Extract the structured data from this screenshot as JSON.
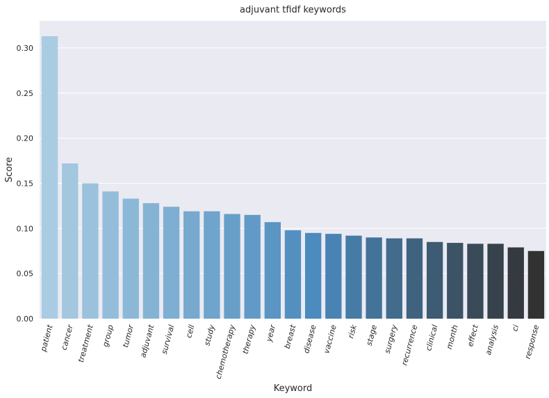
{
  "chart_data": {
    "type": "bar",
    "title": "adjuvant tfidf keywords",
    "xlabel": "Keyword",
    "ylabel": "Score",
    "ylim": [
      0,
      0.33
    ],
    "yticks": [
      "0.00",
      "0.05",
      "0.10",
      "0.15",
      "0.20",
      "0.25",
      "0.30"
    ],
    "grid": true,
    "categories": [
      "patient",
      "cancer",
      "treatment",
      "group",
      "tumor",
      "adjuvant",
      "survival",
      "cell",
      "study",
      "chemotherapy",
      "therapy",
      "year",
      "breast",
      "disease",
      "vaccine",
      "risk",
      "stage",
      "surgery",
      "recurrence",
      "clinical",
      "month",
      "effect",
      "analysis",
      "ci",
      "response"
    ],
    "values": [
      0.313,
      0.172,
      0.15,
      0.141,
      0.133,
      0.128,
      0.124,
      0.119,
      0.119,
      0.116,
      0.115,
      0.107,
      0.098,
      0.095,
      0.094,
      0.092,
      0.09,
      0.089,
      0.089,
      0.085,
      0.084,
      0.083,
      0.083,
      0.079,
      0.075
    ],
    "palette_start": "#a9cce2",
    "palette_mid": "#4a8abd",
    "palette_end": "#323232",
    "background": "#eaeaf2",
    "grid_color": "#ffffff"
  }
}
